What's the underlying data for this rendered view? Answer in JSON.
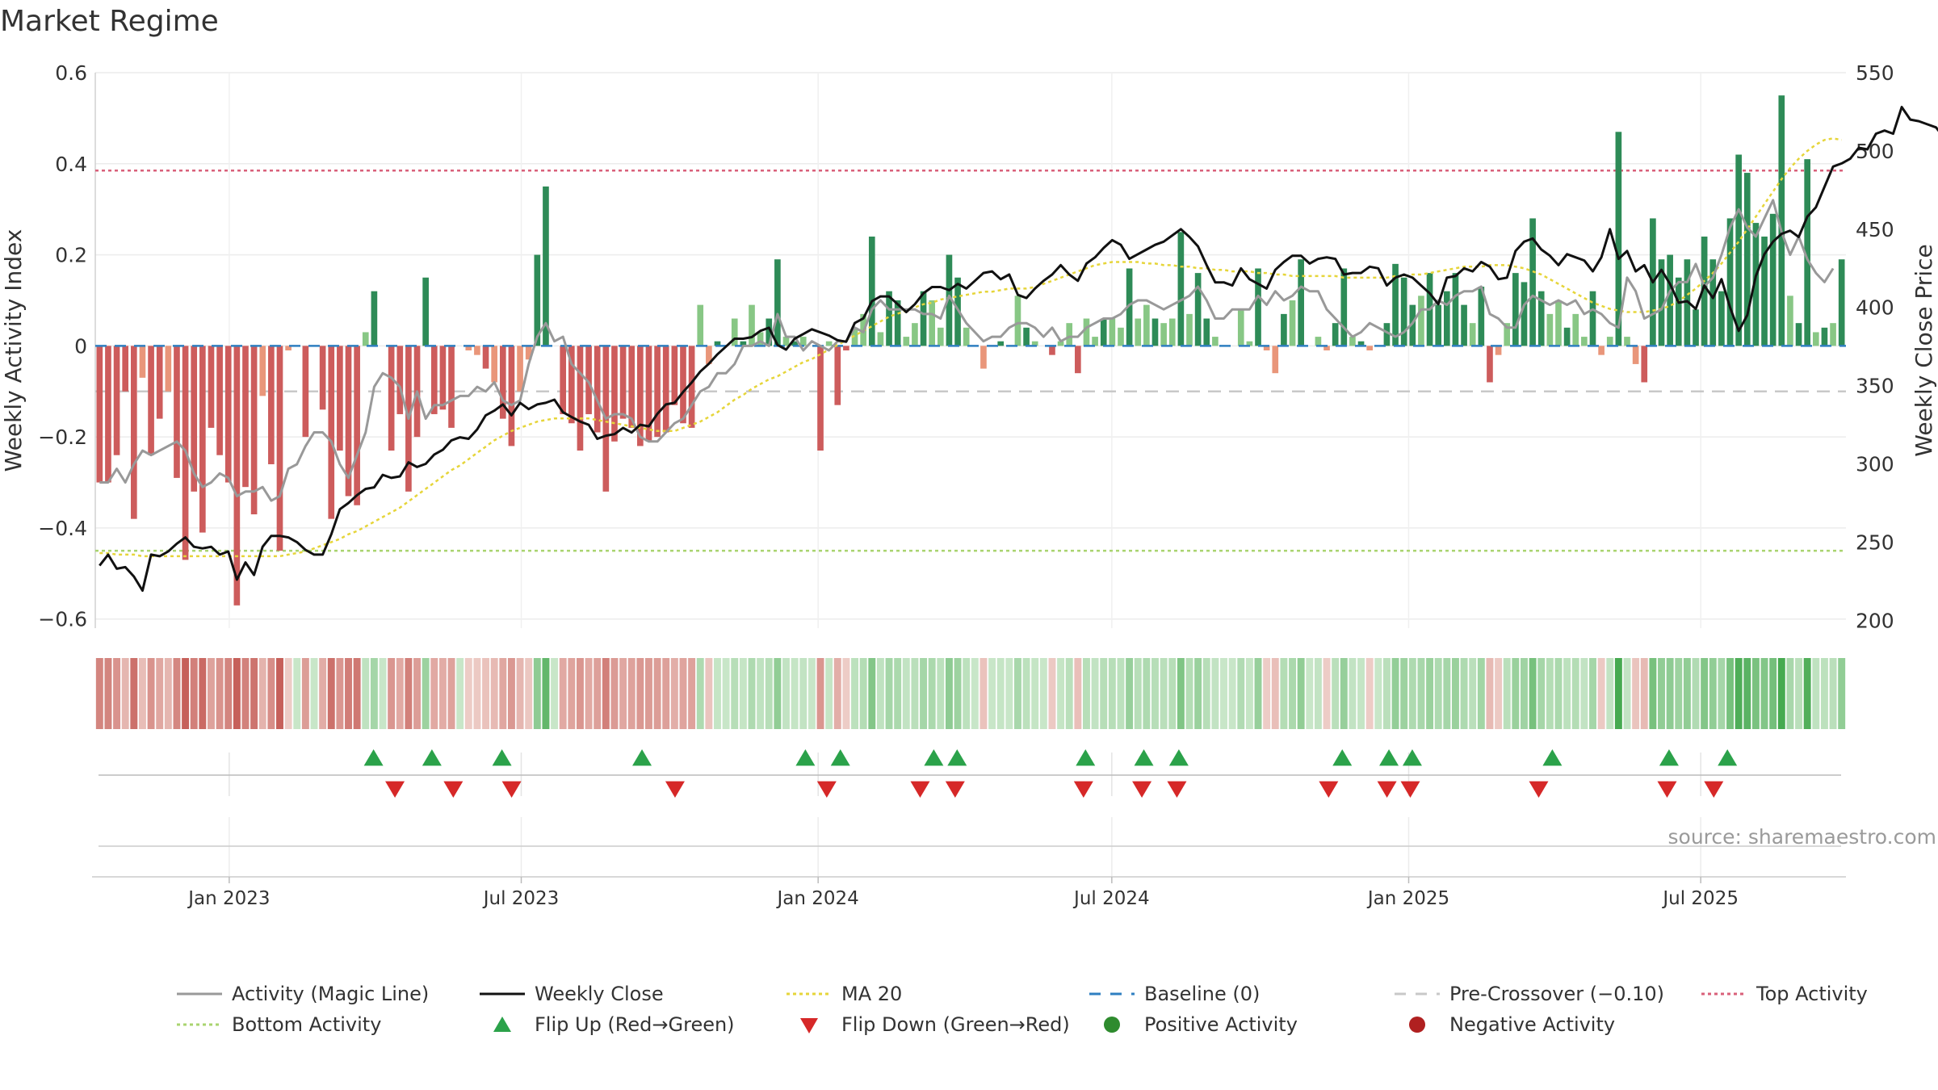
{
  "chart_data": {
    "type": "bar",
    "title": "Market Regime",
    "ylabel": "Weekly Activity Index",
    "y2label": "Weekly Close Price",
    "ylim": [
      -0.62,
      0.6
    ],
    "y2lim": [
      195,
      550
    ],
    "yticks": [
      -0.6,
      -0.4,
      -0.2,
      0,
      0.2,
      0.4,
      0.6
    ],
    "yticklabels": [
      "−0.6",
      "−0.4",
      "−0.2",
      "0",
      "0.2",
      "0.4",
      "0.6"
    ],
    "y2ticks": [
      200,
      250,
      300,
      350,
      400,
      450,
      500,
      550
    ],
    "y2ticklabels": [
      "200",
      "250",
      "300",
      "350",
      "400",
      "450",
      "500",
      "550"
    ],
    "x_start": "2022-10-10",
    "x_end": "2025-09-29",
    "xticks": [
      {
        "date": "2023-01-01",
        "label": "Jan 2023"
      },
      {
        "date": "2023-07-01",
        "label": "Jul 2023"
      },
      {
        "date": "2024-01-01",
        "label": "Jan 2024"
      },
      {
        "date": "2024-07-01",
        "label": "Jul 2024"
      },
      {
        "date": "2025-01-01",
        "label": "Jan 2025"
      },
      {
        "date": "2025-07-01",
        "label": "Jul 2025"
      }
    ],
    "top_activity": 0.385,
    "bottom_activity": -0.45,
    "baseline": 0,
    "pre_crossover": -0.1,
    "series": [
      {
        "name": "Weekly Activity Index",
        "kind": "bar",
        "values": [
          -0.3,
          -0.3,
          -0.24,
          -0.1,
          -0.38,
          -0.07,
          -0.24,
          -0.16,
          -0.1,
          -0.29,
          -0.47,
          -0.32,
          -0.41,
          -0.18,
          -0.24,
          -0.3,
          -0.57,
          -0.31,
          -0.37,
          -0.11,
          -0.26,
          -0.45,
          -0.01,
          0,
          -0.2,
          0,
          -0.14,
          -0.38,
          -0.23,
          -0.33,
          -0.35,
          0.03,
          0.12,
          0,
          -0.23,
          -0.15,
          -0.32,
          -0.2,
          0.15,
          -0.15,
          -0.14,
          -0.18,
          0,
          -0.01,
          -0.02,
          -0.05,
          -0.08,
          -0.16,
          -0.22,
          -0.1,
          -0.03,
          0.2,
          0.35,
          0,
          -0.15,
          -0.17,
          -0.23,
          -0.15,
          -0.19,
          -0.32,
          -0.21,
          -0.16,
          -0.18,
          -0.22,
          -0.21,
          -0.2,
          -0.19,
          -0.13,
          -0.17,
          -0.18,
          0.09,
          -0.04,
          0.01,
          0,
          0.06,
          0.01,
          0.09,
          0.03,
          0.06,
          0.19,
          0.02,
          0.01,
          0.02,
          0,
          -0.23,
          0.01,
          -0.13,
          -0.01,
          0.04,
          0.07,
          0.24,
          0.03,
          0.12,
          0.1,
          0.02,
          0.05,
          0.12,
          0.1,
          0.04,
          0.2,
          0.15,
          0.04,
          0,
          -0.05,
          0,
          0.01,
          0,
          0.11,
          0.04,
          0.01,
          0,
          -0.02,
          0.01,
          0.05,
          -0.06,
          0.06,
          0.02,
          0.06,
          0.06,
          0.04,
          0.17,
          0.06,
          0.09,
          0.06,
          0.05,
          0.06,
          0.25,
          0.07,
          0.16,
          0.06,
          0.02,
          0,
          0,
          0.08,
          0.01,
          0.17,
          -0.01,
          -0.06,
          0.07,
          0.1,
          0.19,
          0,
          0.02,
          -0.01,
          0.05,
          0.17,
          0.02,
          0.01,
          -0.01,
          0,
          0.05,
          0.18,
          0.15,
          0.09,
          0.11,
          0.16,
          0.09,
          0.12,
          0.16,
          0.09,
          0.05,
          0.13,
          -0.08,
          -0.02,
          0.05,
          0.16,
          0.14,
          0.28,
          0.12,
          0.07,
          0.1,
          0.04,
          0.07,
          0.02,
          0.12,
          -0.02,
          0.02,
          0.47,
          0.02,
          -0.04,
          -0.08,
          0.28,
          0.19,
          0.2,
          0.15,
          0.19,
          0.08,
          0.24,
          0.19,
          0.12,
          0.28,
          0.42,
          0.38,
          0.27,
          0.24,
          0.29,
          0.55,
          0.11,
          0.05,
          0.41,
          0.03,
          0.04,
          0.05,
          0.19
        ]
      },
      {
        "name": "Activity (Magic Line)",
        "kind": "line",
        "values": [
          -0.3,
          -0.3,
          -0.27,
          -0.3,
          -0.26,
          -0.23,
          -0.24,
          -0.23,
          -0.22,
          -0.21,
          -0.23,
          -0.28,
          -0.31,
          -0.3,
          -0.28,
          -0.29,
          -0.33,
          -0.32,
          -0.32,
          -0.31,
          -0.34,
          -0.33,
          -0.27,
          -0.26,
          -0.22,
          -0.19,
          -0.19,
          -0.21,
          -0.26,
          -0.29,
          -0.24,
          -0.19,
          -0.09,
          -0.06,
          -0.07,
          -0.09,
          -0.16,
          -0.1,
          -0.16,
          -0.13,
          -0.13,
          -0.12,
          -0.11,
          -0.11,
          -0.09,
          -0.1,
          -0.08,
          -0.12,
          -0.13,
          -0.12,
          -0.04,
          0.02,
          0.05,
          0.01,
          0.02,
          -0.04,
          -0.06,
          -0.08,
          -0.12,
          -0.16,
          -0.15,
          -0.15,
          -0.16,
          -0.2,
          -0.21,
          -0.21,
          -0.19,
          -0.17,
          -0.16,
          -0.13,
          -0.1,
          -0.09,
          -0.06,
          -0.06,
          -0.04,
          0,
          0,
          0.01,
          0,
          0.07,
          0.02,
          0.02,
          -0.01,
          0.01,
          0,
          -0.01,
          0.01,
          0.01,
          0.04,
          0.03,
          0.08,
          0.1,
          0.08,
          0.08,
          0.08,
          0.08,
          0.07,
          0.07,
          0.06,
          0.11,
          0.08,
          0.05,
          0.03,
          0.01,
          0.02,
          0.02,
          0.04,
          0.05,
          0.05,
          0.04,
          0.02,
          0.04,
          0.01,
          0.02,
          0.02,
          0.04,
          0.05,
          0.06,
          0.06,
          0.07,
          0.09,
          0.1,
          0.1,
          0.09,
          0.08,
          0.09,
          0.1,
          0.11,
          0.13,
          0.1,
          0.06,
          0.06,
          0.08,
          0.08,
          0.08,
          0.11,
          0.09,
          0.12,
          0.1,
          0.11,
          0.13,
          0.12,
          0.12,
          0.08,
          0.06,
          0.04,
          0.02,
          0.03,
          0.05,
          0.04,
          0.03,
          0.02,
          0.03,
          0.05,
          0.08,
          0.08,
          0.1,
          0.09,
          0.11,
          0.12,
          0.12,
          0.13,
          0.07,
          0.06,
          0.04,
          0.04,
          0.09,
          0.11,
          0.1,
          0.09,
          0.1,
          0.09,
          0.1,
          0.07,
          0.08,
          0.07,
          0.05,
          0.04,
          0.15,
          0.12,
          0.06,
          0.07,
          0.08,
          0.12,
          0.14,
          0.14,
          0.18,
          0.13,
          0.15,
          0.2,
          0.26,
          0.3,
          0.26,
          0.24,
          0.28,
          0.32,
          0.25,
          0.2,
          0.24,
          0.19,
          0.16,
          0.14,
          0.17
        ]
      },
      {
        "name": "Weekly Close",
        "kind": "line",
        "axis": "y2",
        "values": [
          235,
          242,
          233,
          234,
          228,
          219,
          242,
          241,
          244,
          249,
          253,
          247,
          246,
          247,
          242,
          244,
          226,
          237,
          229,
          247,
          254,
          254,
          253,
          250,
          245,
          242,
          242,
          255,
          271,
          275,
          280,
          284,
          285,
          293,
          291,
          292,
          301,
          298,
          300,
          306,
          309,
          315,
          317,
          316,
          322,
          331,
          334,
          338,
          331,
          339,
          335,
          338,
          339,
          341,
          333,
          330,
          327,
          325,
          316,
          318,
          319,
          323,
          320,
          325,
          324,
          332,
          338,
          339,
          346,
          352,
          359,
          364,
          370,
          375,
          380,
          380,
          381,
          385,
          387,
          376,
          373,
          380,
          383,
          386,
          384,
          382,
          379,
          378,
          390,
          393,
          404,
          407,
          407,
          402,
          397,
          402,
          409,
          413,
          413,
          411,
          415,
          412,
          417,
          422,
          423,
          418,
          421,
          408,
          406,
          412,
          417,
          421,
          427,
          421,
          417,
          428,
          432,
          438,
          443,
          440,
          431,
          434,
          437,
          440,
          442,
          446,
          450,
          445,
          439,
          427,
          416,
          416,
          414,
          425,
          418,
          415,
          412,
          424,
          429,
          433,
          433,
          428,
          431,
          432,
          431,
          421,
          422,
          422,
          426,
          425,
          414,
          419,
          421,
          419,
          414,
          409,
          402,
          419,
          420,
          425,
          423,
          429,
          426,
          418,
          419,
          436,
          442,
          444,
          437,
          433,
          427,
          434,
          432,
          430,
          423,
          432,
          450,
          431,
          436,
          423,
          427,
          416,
          424,
          415,
          403,
          404,
          399,
          414,
          406,
          418,
          400,
          385,
          395,
          420,
          434,
          442,
          447,
          449,
          445,
          458,
          464,
          477,
          490,
          492,
          495,
          502,
          501,
          511,
          513,
          511,
          528,
          520,
          519,
          517,
          515,
          508,
          506,
          498,
          508,
          515,
          521
        ]
      },
      {
        "name": "MA 20",
        "kind": "line",
        "axis": "y2",
        "values": [
          243,
          243,
          242,
          242,
          242,
          241,
          241,
          241,
          241,
          241,
          241,
          241,
          241,
          241,
          241,
          241,
          241,
          241,
          241,
          241,
          241,
          241,
          242,
          243,
          244,
          246,
          248,
          250,
          252,
          255,
          257,
          260,
          263,
          266,
          269,
          272,
          276,
          280,
          284,
          288,
          292,
          296,
          299,
          303,
          307,
          311,
          315,
          318,
          321,
          323,
          325,
          327,
          328,
          329,
          329,
          329,
          329,
          329,
          328,
          327,
          326,
          325,
          324,
          323,
          322,
          321,
          321,
          321,
          323,
          325,
          327,
          330,
          333,
          337,
          341,
          344,
          348,
          351,
          354,
          356,
          359,
          362,
          365,
          367,
          370,
          373,
          376,
          379,
          382,
          385,
          388,
          391,
          394,
          396,
          398,
          400,
          402,
          403,
          405,
          406,
          407,
          408,
          409,
          410,
          410,
          411,
          412,
          412,
          412,
          413,
          415,
          417,
          419,
          421,
          423,
          425,
          427,
          428,
          429,
          429,
          429,
          429,
          428,
          428,
          427,
          427,
          426,
          426,
          425,
          425,
          424,
          424,
          423,
          423,
          423,
          422,
          422,
          421,
          421,
          420,
          420,
          420,
          420,
          420,
          420,
          419,
          419,
          419,
          419,
          419,
          419,
          420,
          420,
          421,
          421,
          422,
          423,
          424,
          425,
          426,
          426,
          426,
          427,
          427,
          427,
          426,
          425,
          423,
          421,
          418,
          415,
          412,
          409,
          406,
          403,
          401,
          399,
          398,
          397,
          397,
          397,
          398,
          399,
          401,
          404,
          408,
          412,
          417,
          422,
          428,
          435,
          442,
          450,
          458,
          466,
          474,
          482,
          489,
          495,
          500,
          504,
          507,
          508,
          507
        ]
      }
    ],
    "flip_up_weeks": [
      19,
      24,
      30,
      42,
      56,
      59,
      67,
      69,
      80,
      85,
      88,
      102,
      106,
      108,
      120,
      130,
      135
    ],
    "flip_down_weeks": [
      20,
      25,
      30,
      44,
      57,
      65,
      68,
      79,
      84,
      87,
      100,
      105,
      107,
      118,
      129,
      133
    ],
    "regime_strip_values_note": "strip colour intensity follows Weekly Activity Index sign and magnitude",
    "legend": [
      {
        "label": "Activity (Magic Line)",
        "style": "solid",
        "color": "#999999"
      },
      {
        "label": "Weekly Close",
        "style": "solid",
        "color": "#111111"
      },
      {
        "label": "MA 20",
        "style": "dotted",
        "color": "#e6d53a"
      },
      {
        "label": "Baseline (0)",
        "style": "dashed",
        "color": "#2f7fc1"
      },
      {
        "label": "Pre-Crossover (−0.10)",
        "style": "dashed",
        "color": "#c8c8c8"
      },
      {
        "label": "Top Activity",
        "style": "dotted",
        "color": "#d9607a"
      },
      {
        "label": "Bottom Activity",
        "style": "dotted",
        "color": "#a9d46f"
      },
      {
        "label": "Flip Up (Red→Green)",
        "style": "triangle-up",
        "color": "#2ba24a"
      },
      {
        "label": "Flip Down (Green→Red)",
        "style": "triangle-down",
        "color": "#d62828"
      },
      {
        "label": "Positive Activity",
        "style": "circle",
        "color": "#2e8b2e"
      },
      {
        "label": "Negative Activity",
        "style": "circle",
        "color": "#b02020"
      }
    ],
    "legend_placement": "bottom",
    "grid": true
  },
  "source": "source: sharemaestro.com",
  "colors": {
    "pos_strong": "#2e8b57",
    "pos_light": "#88c785",
    "neg_strong": "#cd5c5c",
    "neg_light": "#e9967a",
    "flip_up": "#2ba24a",
    "flip_down": "#d62828"
  }
}
